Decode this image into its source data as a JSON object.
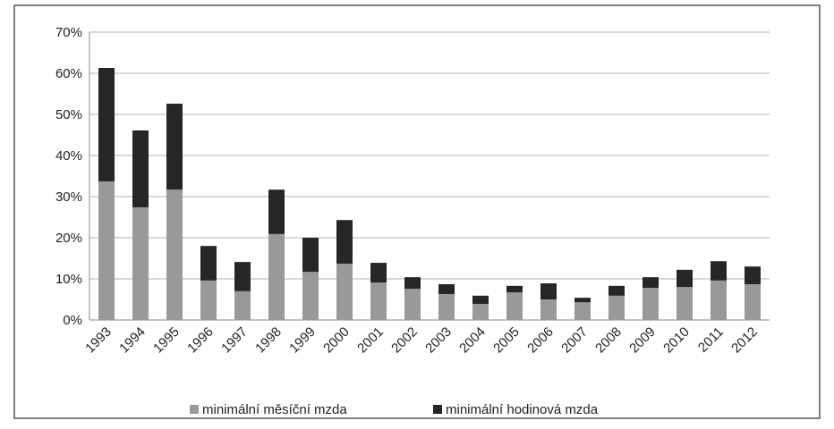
{
  "chart_data": {
    "type": "stacked_bar",
    "categories": [
      "1993",
      "1994",
      "1995",
      "1996",
      "1997",
      "1998",
      "1999",
      "2000",
      "2001",
      "2002",
      "2003",
      "2004",
      "2005",
      "2006",
      "2007",
      "2008",
      "2009",
      "2010",
      "2011",
      "2012"
    ],
    "series": [
      {
        "name": "minimální měsíční mzda",
        "color": "#999999",
        "values": [
          33.7,
          27.4,
          31.7,
          9.6,
          7.0,
          20.9,
          11.7,
          13.7,
          9.1,
          7.6,
          6.3,
          3.9,
          6.7,
          5.0,
          4.3,
          5.9,
          7.8,
          8.0,
          9.6,
          8.7
        ]
      },
      {
        "name": "minimální hodinová mzda",
        "color": "#262626",
        "values": [
          27.6,
          18.7,
          20.9,
          8.4,
          7.1,
          10.8,
          8.3,
          10.6,
          4.8,
          2.8,
          2.4,
          2.0,
          1.6,
          3.9,
          1.1,
          2.4,
          2.6,
          4.2,
          4.7,
          4.3
        ]
      }
    ],
    "ylim": [
      0,
      70
    ],
    "yticks": [
      {
        "value": 0,
        "label": "0%"
      },
      {
        "value": 10,
        "label": "10%"
      },
      {
        "value": 20,
        "label": "20%"
      },
      {
        "value": 30,
        "label": "30%"
      },
      {
        "value": 40,
        "label": "40%"
      },
      {
        "value": 50,
        "label": "50%"
      },
      {
        "value": 60,
        "label": "60%"
      },
      {
        "value": 70,
        "label": "70%"
      }
    ],
    "grid": true,
    "legend": "bottom"
  }
}
